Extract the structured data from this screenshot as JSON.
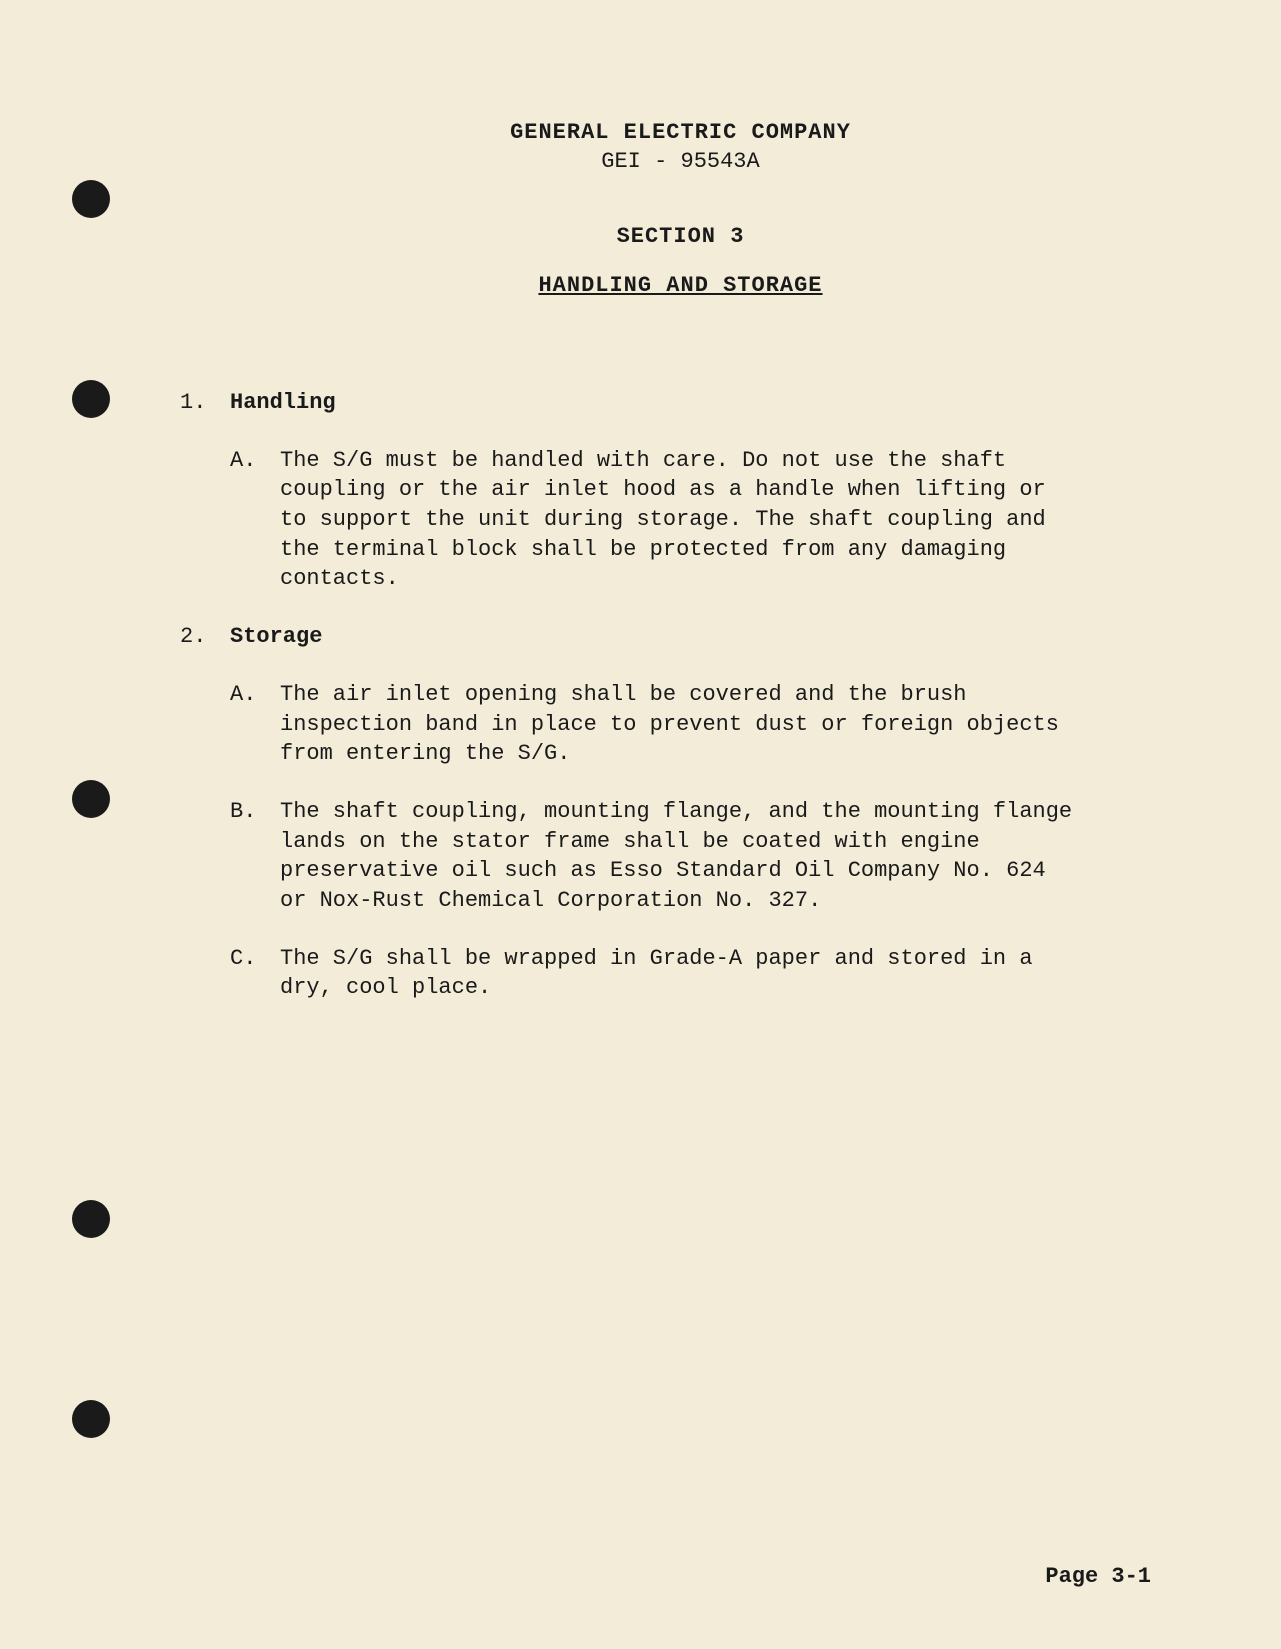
{
  "header": {
    "company": "GENERAL ELECTRIC COMPANY",
    "docNumber": "GEI - 95543A",
    "sectionNumber": "SECTION 3",
    "sectionTitle": "HANDLING AND STORAGE"
  },
  "items": [
    {
      "number": "1.",
      "title": "Handling",
      "subs": [
        {
          "letter": "A.",
          "text": "The S/G must be handled with care. Do not use the shaft coupling or the air inlet hood as a handle when lifting or to support the unit during storage. The shaft coupling and the terminal block shall be protected from any damaging contacts."
        }
      ]
    },
    {
      "number": "2.",
      "title": "Storage",
      "subs": [
        {
          "letter": "A.",
          "text": "The air inlet opening shall be covered and the brush inspection band in place to prevent dust or foreign objects from entering the S/G."
        },
        {
          "letter": "B.",
          "text": "The shaft coupling, mounting flange, and the mounting flange lands on the stator frame shall be coated with engine preservative oil such as Esso Standard Oil Company No. 624 or Nox-Rust Chemical Corporation No. 327."
        },
        {
          "letter": "C.",
          "text": "The S/G shall be wrapped in Grade-A paper and stored in a dry, cool place."
        }
      ]
    }
  ],
  "pageNumber": "Page 3-1",
  "styling": {
    "backgroundColor": "#f2ecd8",
    "textColor": "#1a1a1a",
    "fontFamily": "Courier New",
    "baseFontSize": 22,
    "punchHoleColor": "#1a1a1a",
    "punchHoleDiameter": 38
  }
}
